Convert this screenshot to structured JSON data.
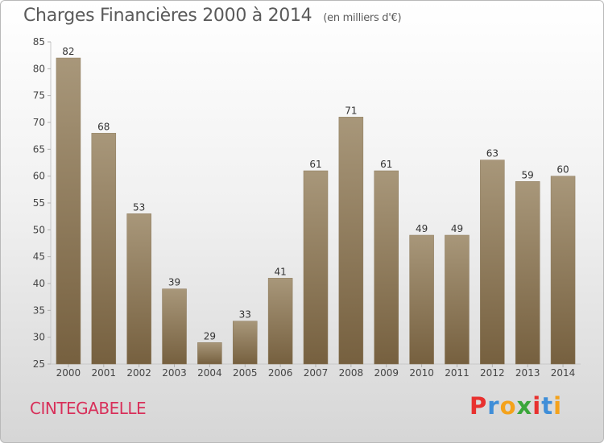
{
  "header": {
    "title": "Charges Financières 2000 à 2014",
    "unit": "(en milliers d'€)"
  },
  "footer": {
    "town": "CINTEGABELLE",
    "brand": [
      "P",
      "r",
      "o",
      "x",
      "i",
      "t",
      "i"
    ],
    "brand_colors": [
      "#e8312f",
      "#3f8ed8",
      "#f4a21b",
      "#3aa63a",
      "#e8312f",
      "#3f8ed8",
      "#f4a21b"
    ]
  },
  "chart_data": {
    "type": "bar",
    "title": "Charges Financières 2000 à 2014",
    "subtitle": "(en milliers d'€)",
    "categories": [
      "2000",
      "2001",
      "2002",
      "2003",
      "2004",
      "2005",
      "2006",
      "2007",
      "2008",
      "2009",
      "2010",
      "2011",
      "2012",
      "2013",
      "2014"
    ],
    "values": [
      82,
      68,
      53,
      39,
      29,
      33,
      41,
      61,
      71,
      61,
      49,
      49,
      63,
      59,
      60
    ],
    "ylim": [
      25,
      85
    ],
    "yticks": [
      25,
      30,
      35,
      40,
      45,
      50,
      55,
      60,
      65,
      70,
      75,
      80,
      85
    ],
    "grid": false,
    "bar_color_top": "#a8977a",
    "bar_color_bottom": "#76603f"
  }
}
